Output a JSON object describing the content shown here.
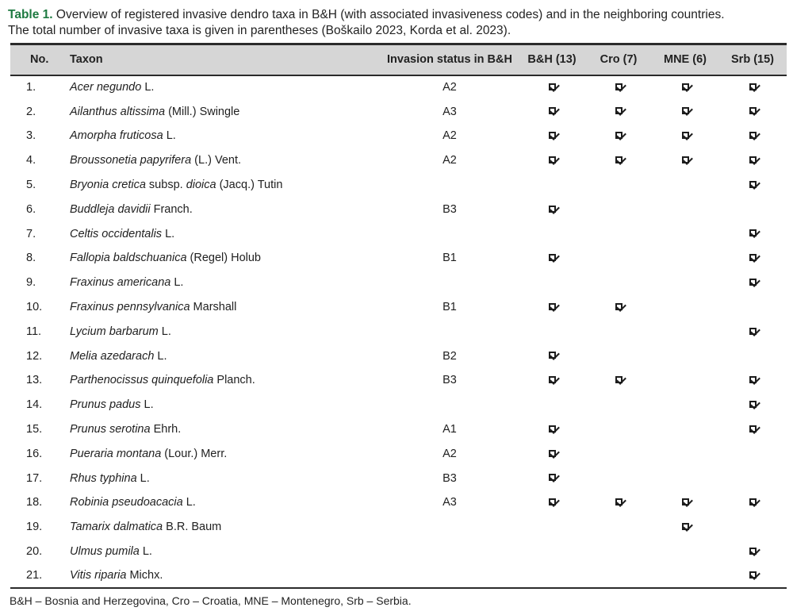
{
  "caption": {
    "label": "Table 1.",
    "lines": [
      "Overview of registered invasive dendro taxa in B&H (with associated invasiveness codes) and in the neighboring countries.",
      "The total number of invasive taxa is given in parentheses (Boškailo 2023, Korda et al. 2023)."
    ]
  },
  "table": {
    "columns": [
      "No.",
      "Taxon",
      "Invasion status in B&H",
      "B&H (13)",
      "Cro (7)",
      "MNE (6)",
      "Srb (15)"
    ],
    "rows": [
      {
        "no": "1.",
        "taxon": [
          {
            "t": "Acer negundo",
            "i": true
          },
          {
            "t": " L.",
            "i": false
          }
        ],
        "status": "A2",
        "bh": true,
        "cro": true,
        "mne": true,
        "srb": true
      },
      {
        "no": "2.",
        "taxon": [
          {
            "t": "Ailanthus altissima",
            "i": true
          },
          {
            "t": " (Mill.) Swingle",
            "i": false
          }
        ],
        "status": "A3",
        "bh": true,
        "cro": true,
        "mne": true,
        "srb": true
      },
      {
        "no": "3.",
        "taxon": [
          {
            "t": "Amorpha fruticosa",
            "i": true
          },
          {
            "t": " L.",
            "i": false
          }
        ],
        "status": "A2",
        "bh": true,
        "cro": true,
        "mne": true,
        "srb": true
      },
      {
        "no": "4.",
        "taxon": [
          {
            "t": "Broussonetia papyrifera",
            "i": true
          },
          {
            "t": " (L.) Vent.",
            "i": false
          }
        ],
        "status": "A2",
        "bh": true,
        "cro": true,
        "mne": true,
        "srb": true
      },
      {
        "no": "5.",
        "taxon": [
          {
            "t": "Bryonia cretica",
            "i": true
          },
          {
            "t": " subsp. ",
            "i": false
          },
          {
            "t": "dioica",
            "i": true
          },
          {
            "t": " (Jacq.) Tutin",
            "i": false
          }
        ],
        "status": "",
        "bh": false,
        "cro": false,
        "mne": false,
        "srb": true
      },
      {
        "no": "6.",
        "taxon": [
          {
            "t": "Buddleja davidii",
            "i": true
          },
          {
            "t": " Franch.",
            "i": false
          }
        ],
        "status": "B3",
        "bh": true,
        "cro": false,
        "mne": false,
        "srb": false
      },
      {
        "no": "7.",
        "taxon": [
          {
            "t": "Celtis occidentalis",
            "i": true
          },
          {
            "t": " L.",
            "i": false
          }
        ],
        "status": "",
        "bh": false,
        "cro": false,
        "mne": false,
        "srb": true
      },
      {
        "no": "8.",
        "taxon": [
          {
            "t": "Fallopia baldschuanica",
            "i": true
          },
          {
            "t": " (Regel) Holub",
            "i": false
          }
        ],
        "status": "B1",
        "bh": true,
        "cro": false,
        "mne": false,
        "srb": true
      },
      {
        "no": "9.",
        "taxon": [
          {
            "t": "Fraxinus americana",
            "i": true
          },
          {
            "t": " L.",
            "i": false
          }
        ],
        "status": "",
        "bh": false,
        "cro": false,
        "mne": false,
        "srb": true
      },
      {
        "no": "10.",
        "taxon": [
          {
            "t": "Fraxinus pennsylvanica",
            "i": true
          },
          {
            "t": " Marshall",
            "i": false
          }
        ],
        "status": "B1",
        "bh": true,
        "cro": true,
        "mne": false,
        "srb": false
      },
      {
        "no": "11.",
        "taxon": [
          {
            "t": "Lycium barbarum",
            "i": true
          },
          {
            "t": " L.",
            "i": false
          }
        ],
        "status": "",
        "bh": false,
        "cro": false,
        "mne": false,
        "srb": true
      },
      {
        "no": "12.",
        "taxon": [
          {
            "t": "Melia azedarach",
            "i": true
          },
          {
            "t": " L.",
            "i": false
          }
        ],
        "status": "B2",
        "bh": true,
        "cro": false,
        "mne": false,
        "srb": false
      },
      {
        "no": "13.",
        "taxon": [
          {
            "t": "Parthenocissus quinquefolia",
            "i": true
          },
          {
            "t": " Planch.",
            "i": false
          }
        ],
        "status": "B3",
        "bh": true,
        "cro": true,
        "mne": false,
        "srb": true
      },
      {
        "no": "14.",
        "taxon": [
          {
            "t": "Prunus padus",
            "i": true
          },
          {
            "t": " L.",
            "i": false
          }
        ],
        "status": "",
        "bh": false,
        "cro": false,
        "mne": false,
        "srb": true
      },
      {
        "no": "15.",
        "taxon": [
          {
            "t": "Prunus serotina",
            "i": true
          },
          {
            "t": " Ehrh.",
            "i": false
          }
        ],
        "status": "A1",
        "bh": true,
        "cro": false,
        "mne": false,
        "srb": true
      },
      {
        "no": "16.",
        "taxon": [
          {
            "t": "Pueraria montana",
            "i": true
          },
          {
            "t": " (Lour.) Merr.",
            "i": false
          }
        ],
        "status": "A2",
        "bh": true,
        "cro": false,
        "mne": false,
        "srb": false
      },
      {
        "no": "17.",
        "taxon": [
          {
            "t": "Rhus typhina",
            "i": true
          },
          {
            "t": " L.",
            "i": false
          }
        ],
        "status": "B3",
        "bh": true,
        "cro": false,
        "mne": false,
        "srb": false
      },
      {
        "no": "18.",
        "taxon": [
          {
            "t": "Robinia pseudoacacia",
            "i": true
          },
          {
            "t": " L.",
            "i": false
          }
        ],
        "status": "A3",
        "bh": true,
        "cro": true,
        "mne": true,
        "srb": true
      },
      {
        "no": "19.",
        "taxon": [
          {
            "t": "Tamarix dalmatica",
            "i": true
          },
          {
            "t": " B.R. Baum",
            "i": false
          }
        ],
        "status": "",
        "bh": false,
        "cro": false,
        "mne": true,
        "srb": false
      },
      {
        "no": "20.",
        "taxon": [
          {
            "t": "Ulmus pumila",
            "i": true
          },
          {
            "t": " L.",
            "i": false
          }
        ],
        "status": "",
        "bh": false,
        "cro": false,
        "mne": false,
        "srb": true
      },
      {
        "no": "21.",
        "taxon": [
          {
            "t": "Vitis riparia",
            "i": true
          },
          {
            "t": " Michx.",
            "i": false
          }
        ],
        "status": "",
        "bh": false,
        "cro": false,
        "mne": false,
        "srb": true
      }
    ]
  },
  "footnote": "B&H – Bosnia and Herzegovina, Cro – Croatia, MNE – Montenegro, Srb – Serbia.",
  "colors": {
    "caption_label_green": "#1e7a41",
    "header_bg": "#d6d6d6",
    "border": "#2b2b2b",
    "text": "#212121"
  }
}
